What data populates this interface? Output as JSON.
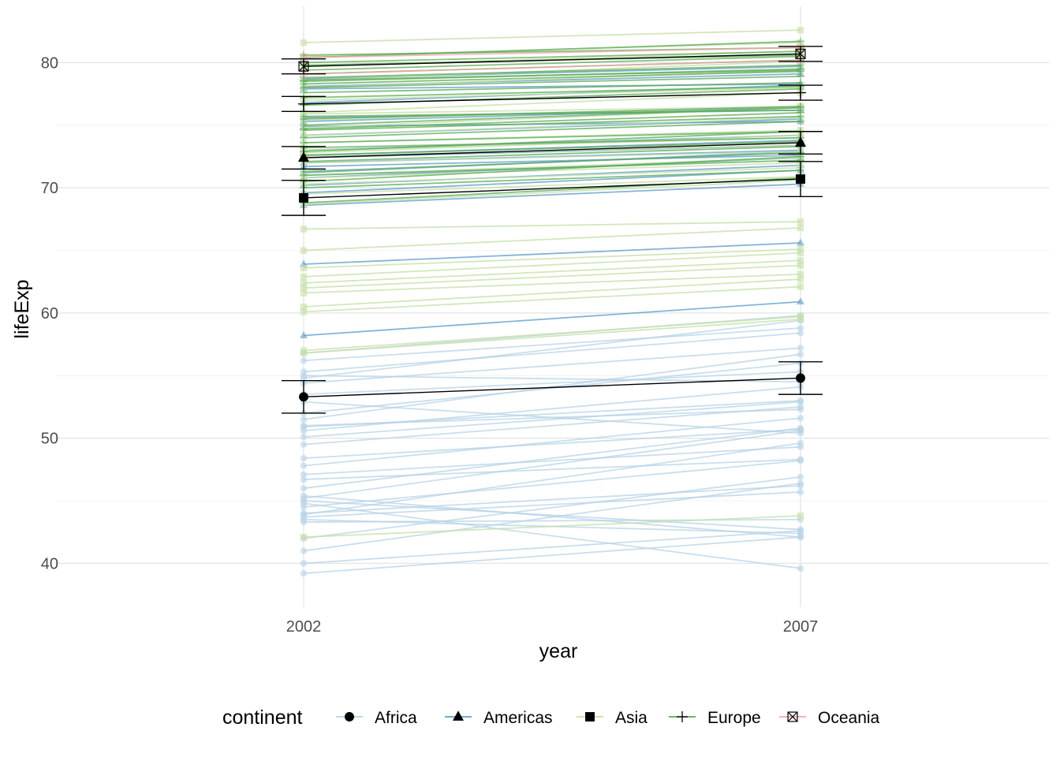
{
  "chart_data": {
    "type": "line",
    "xlabel": "year",
    "ylabel": "lifeExp",
    "x": [
      2002,
      2007
    ],
    "x_ticks": [
      "2002",
      "2007"
    ],
    "xlim": [
      1999.5,
      2009.5
    ],
    "ylim": [
      36.5,
      84.5
    ],
    "y_ticks": [
      40,
      50,
      60,
      70,
      80
    ],
    "grid": true,
    "legend_title": "continent",
    "legend_position": "bottom",
    "series": [
      {
        "name": "Africa",
        "color": "#b7d3e6",
        "marker": "circle",
        "country_lines": [
          [
            39.2,
            42.1
          ],
          [
            40.0,
            42.6
          ],
          [
            41.0,
            46.4
          ],
          [
            42.0,
            46.9
          ],
          [
            43.3,
            43.5
          ],
          [
            43.5,
            42.4
          ],
          [
            43.7,
            45.7
          ],
          [
            44.0,
            46.2
          ],
          [
            44.5,
            48.2
          ],
          [
            45.0,
            42.7
          ],
          [
            45.4,
            42.1
          ],
          [
            46.0,
            50.8
          ],
          [
            46.7,
            48.3
          ],
          [
            47.1,
            49.3
          ],
          [
            47.8,
            51.6
          ],
          [
            49.5,
            52.5
          ],
          [
            50.1,
            52.9
          ],
          [
            50.6,
            54.1
          ],
          [
            50.9,
            53.0
          ],
          [
            51.5,
            56.7
          ],
          [
            52.0,
            56.0
          ],
          [
            52.9,
            50.4
          ],
          [
            53.5,
            55.3
          ],
          [
            54.4,
            57.2
          ],
          [
            54.8,
            59.4
          ],
          [
            55.3,
            58.4
          ],
          [
            56.2,
            58.8
          ],
          [
            56.8,
            59.8
          ],
          [
            45.2,
            50.6
          ],
          [
            43.9,
            49.6
          ],
          [
            44.8,
            39.6
          ],
          [
            48.4,
            50.7
          ],
          [
            55.0,
            54.5
          ],
          [
            51.0,
            52.3
          ]
        ],
        "mean": [
          53.3,
          54.8
        ],
        "error": [
          1.3,
          1.3
        ]
      },
      {
        "name": "Americas",
        "color": "#5b9bc8",
        "marker": "triangle",
        "country_lines": [
          [
            58.2,
            60.9
          ],
          [
            63.9,
            65.6
          ],
          [
            68.6,
            70.3
          ],
          [
            69.6,
            71.4
          ],
          [
            70.2,
            71.8
          ],
          [
            70.8,
            72.4
          ],
          [
            71.2,
            72.9
          ],
          [
            71.7,
            72.6
          ],
          [
            72.0,
            73.0
          ],
          [
            72.4,
            73.4
          ],
          [
            72.6,
            73.8
          ],
          [
            73.0,
            74.2
          ],
          [
            74.2,
            75.5
          ],
          [
            74.9,
            75.3
          ],
          [
            75.3,
            76.4
          ],
          [
            75.6,
            76.2
          ],
          [
            76.8,
            78.2
          ],
          [
            77.9,
            78.3
          ],
          [
            78.1,
            79.1
          ],
          [
            78.7,
            79.7
          ]
        ],
        "mean": [
          72.4,
          73.6
        ],
        "error": [
          0.9,
          0.9
        ]
      },
      {
        "name": "Asia",
        "color": "#c4e0a6",
        "marker": "square",
        "country_lines": [
          [
            42.1,
            43.8
          ],
          [
            56.8,
            59.5
          ],
          [
            57.0,
            59.7
          ],
          [
            60.1,
            62.1
          ],
          [
            60.5,
            62.7
          ],
          [
            61.6,
            63.1
          ],
          [
            62.0,
            63.8
          ],
          [
            62.4,
            64.2
          ],
          [
            62.9,
            64.8
          ],
          [
            63.6,
            65.1
          ],
          [
            65.0,
            66.8
          ],
          [
            66.7,
            67.3
          ],
          [
            68.7,
            70.6
          ],
          [
            69.5,
            70.9
          ],
          [
            70.3,
            71.6
          ],
          [
            70.8,
            72.0
          ],
          [
            71.0,
            72.4
          ],
          [
            72.0,
            72.9
          ],
          [
            72.5,
            73.4
          ],
          [
            72.8,
            74.2
          ],
          [
            73.0,
            74.0
          ],
          [
            74.2,
            75.6
          ],
          [
            74.8,
            76.4
          ],
          [
            75.4,
            76.5
          ],
          [
            76.0,
            77.6
          ],
          [
            77.0,
            78.0
          ],
          [
            78.0,
            79.4
          ],
          [
            78.6,
            80.1
          ],
          [
            79.7,
            80.9
          ],
          [
            80.5,
            81.6
          ],
          [
            81.6,
            82.6
          ],
          [
            73.6,
            74.6
          ],
          [
            75.9,
            76.5
          ]
        ],
        "mean": [
          69.2,
          70.7
        ],
        "error": [
          1.4,
          1.4
        ]
      },
      {
        "name": "Europe",
        "color": "#5aab54",
        "marker": "cross",
        "country_lines": [
          [
            68.8,
            70.8
          ],
          [
            70.0,
            71.4
          ],
          [
            70.5,
            72.5
          ],
          [
            71.3,
            72.8
          ],
          [
            72.1,
            73.3
          ],
          [
            72.6,
            73.7
          ],
          [
            73.2,
            74.0
          ],
          [
            73.6,
            74.5
          ],
          [
            74.0,
            75.3
          ],
          [
            74.7,
            76.0
          ],
          [
            75.0,
            76.4
          ],
          [
            75.5,
            76.5
          ],
          [
            76.6,
            77.9
          ],
          [
            77.2,
            78.1
          ],
          [
            78.0,
            78.9
          ],
          [
            78.3,
            79.3
          ],
          [
            78.5,
            79.5
          ],
          [
            78.8,
            79.8
          ],
          [
            79.1,
            80.2
          ],
          [
            79.4,
            80.5
          ],
          [
            79.8,
            80.6
          ],
          [
            80.0,
            80.9
          ],
          [
            80.4,
            81.7
          ],
          [
            80.6,
            81.2
          ],
          [
            78.6,
            79.4
          ],
          [
            77.6,
            78.4
          ],
          [
            75.7,
            76.2
          ],
          [
            74.6,
            75.7
          ],
          [
            72.9,
            74.5
          ],
          [
            71.0,
            72.2
          ]
        ],
        "mean": [
          76.7,
          77.6
        ],
        "error": [
          0.6,
          0.6
        ]
      },
      {
        "name": "Oceania",
        "color": "#f4a6ae",
        "marker": "square-x",
        "country_lines": [
          [
            79.1,
            80.2
          ],
          [
            80.4,
            81.2
          ]
        ],
        "mean": [
          79.7,
          80.7
        ],
        "error": [
          0.6,
          0.6
        ]
      }
    ]
  }
}
